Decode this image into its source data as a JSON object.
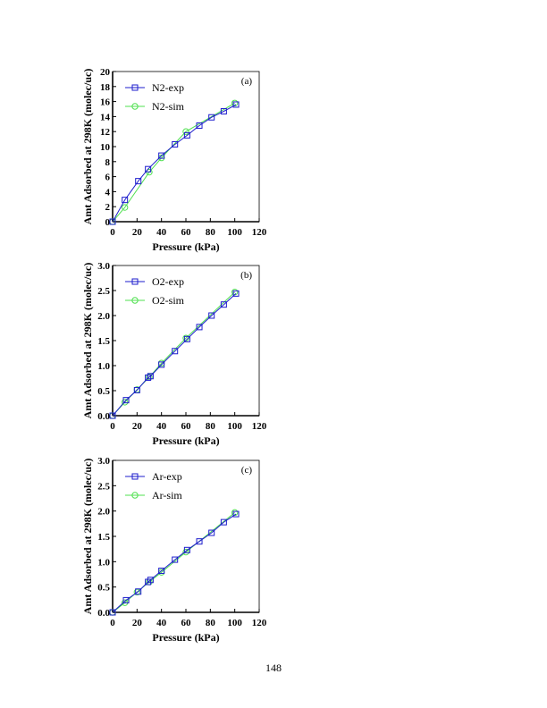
{
  "page": {
    "number": "148"
  },
  "colors": {
    "exp": "#1c1ccc",
    "sim": "#4fe04f",
    "axis": "#000000"
  },
  "chart_data": [
    {
      "type": "line",
      "panel_label": "(a)",
      "xlabel": "Pressure (kPa)",
      "ylabel": "Amt Adsorbed at 298K (molec/uc)",
      "xlim": [
        0,
        120
      ],
      "ylim": [
        0,
        20
      ],
      "xticks": [
        "0",
        "20",
        "40",
        "60",
        "80",
        "100",
        "120"
      ],
      "yticks": [
        "0",
        "2",
        "4",
        "6",
        "8",
        "10",
        "12",
        "14",
        "16",
        "18",
        "20"
      ],
      "legend_position": "top-left",
      "series": [
        {
          "name": "N2-exp",
          "marker": "square",
          "color": "#1c1ccc",
          "x": [
            0,
            10,
            21,
            29,
            40,
            51,
            61,
            71,
            81,
            91,
            101
          ],
          "y": [
            0,
            2.9,
            5.4,
            7.0,
            8.8,
            10.3,
            11.5,
            12.8,
            13.9,
            14.7,
            15.6
          ]
        },
        {
          "name": "N2-sim",
          "marker": "circle",
          "color": "#4fe04f",
          "x": [
            0,
            10,
            30,
            40,
            60,
            100
          ],
          "y": [
            0,
            1.9,
            6.6,
            8.5,
            12.0,
            15.8
          ]
        }
      ]
    },
    {
      "type": "line",
      "panel_label": "(b)",
      "xlabel": "Pressure (kPa)",
      "ylabel": "Amt Adsorbed at 298K (molec/uc)",
      "xlim": [
        0,
        120
      ],
      "ylim": [
        0,
        3
      ],
      "xticks": [
        "0",
        "20",
        "40",
        "60",
        "80",
        "100",
        "120"
      ],
      "yticks": [
        "0.0",
        "0.5",
        "1.0",
        "1.5",
        "2.0",
        "2.5",
        "3.0"
      ],
      "legend_position": "top-left",
      "series": [
        {
          "name": "O2-exp",
          "marker": "square",
          "color": "#1c1ccc",
          "x": [
            0,
            11,
            20,
            29,
            31,
            40,
            51,
            61,
            71,
            81,
            91,
            101
          ],
          "y": [
            0,
            0.31,
            0.51,
            0.76,
            0.79,
            1.02,
            1.29,
            1.53,
            1.77,
            2.0,
            2.22,
            2.44
          ]
        },
        {
          "name": "O2-sim",
          "marker": "circle",
          "color": "#4fe04f",
          "x": [
            0,
            10,
            20,
            30,
            40,
            60,
            100
          ],
          "y": [
            0,
            0.27,
            0.52,
            0.77,
            1.05,
            1.55,
            2.47
          ]
        }
      ]
    },
    {
      "type": "line",
      "panel_label": "(c)",
      "xlabel": "Pressure (kPa)",
      "ylabel": "Amt Adsorbed at 298K (molec/uc)",
      "xlim": [
        0,
        120
      ],
      "ylim": [
        0,
        3
      ],
      "xticks": [
        "0",
        "20",
        "40",
        "60",
        "80",
        "100",
        "120"
      ],
      "yticks": [
        "0.0",
        "0.5",
        "1.0",
        "1.5",
        "2.0",
        "2.5",
        "3.0"
      ],
      "legend_position": "top-left",
      "series": [
        {
          "name": "Ar-exp",
          "marker": "square",
          "color": "#1c1ccc",
          "x": [
            0,
            11,
            21,
            29,
            31,
            40,
            51,
            61,
            71,
            81,
            91,
            101
          ],
          "y": [
            0,
            0.24,
            0.41,
            0.6,
            0.64,
            0.82,
            1.04,
            1.23,
            1.4,
            1.57,
            1.78,
            1.94
          ]
        },
        {
          "name": "Ar-sim",
          "marker": "circle",
          "color": "#4fe04f",
          "x": [
            0,
            10,
            20,
            30,
            40,
            60,
            100
          ],
          "y": [
            0,
            0.19,
            0.4,
            0.6,
            0.79,
            1.19,
            1.97
          ]
        }
      ]
    }
  ]
}
